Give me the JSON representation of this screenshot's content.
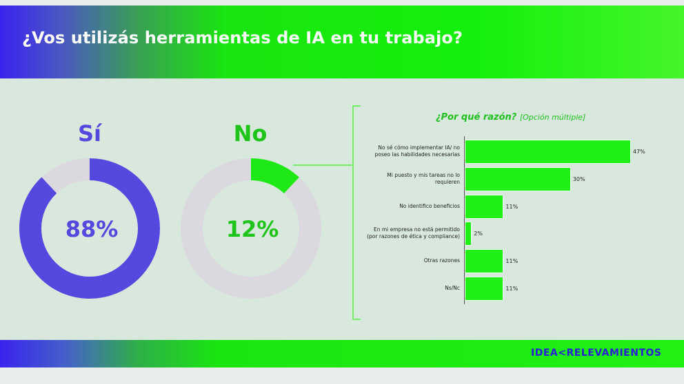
{
  "header": {
    "title": "¿Vos utilizás herramientas de IA en tu trabajo?"
  },
  "donuts": [
    {
      "label": "Sí",
      "percent_text": "88%",
      "value": 88,
      "color": "#5349de",
      "rest_color": "#dcd8e0"
    },
    {
      "label": "No",
      "percent_text": "12%",
      "value": 12,
      "color": "#1ee816",
      "rest_color": "#dcd8e0"
    }
  ],
  "chart_data": {
    "type": "bar",
    "orientation": "horizontal",
    "title": "¿Por qué razón?",
    "subtitle": "[Opción múltiple]",
    "categories": [
      "No sé cómo implementar IA/ no poseo las habilidades necesarias",
      "Mi puesto y mis tareas no lo requieren",
      "No identifico beneficios",
      "En mi empresa no está permitido (por razones de ética y compliance)",
      "Otras razones",
      "Ns/Nc"
    ],
    "values": [
      47,
      30,
      11,
      2,
      11,
      11
    ],
    "value_labels": [
      "47%",
      "30%",
      "11%",
      "2%",
      "11%",
      "11%"
    ],
    "bar_color": "#1ef016"
  },
  "footer": {
    "logo_left": "IDEA",
    "logo_right": "RELEVAMIENTOS",
    "logo_separator": "<"
  }
}
